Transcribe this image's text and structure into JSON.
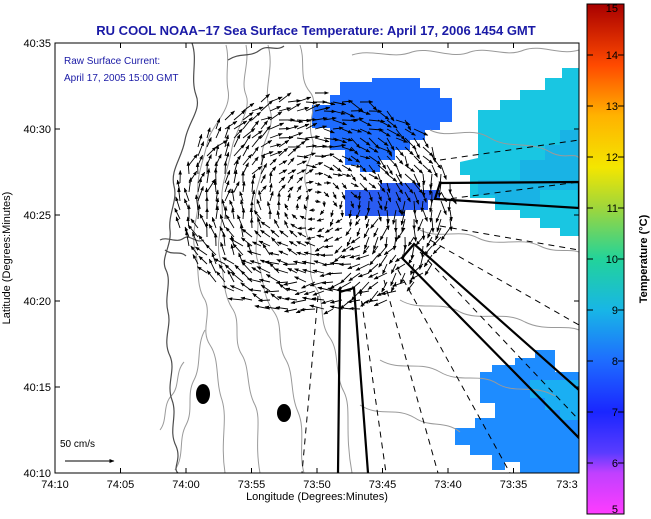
{
  "title": "RU COOL  NOAA−17  Sea Surface Temperature:  April 17, 2006 1454 GMT",
  "annotation": {
    "line1": "Raw Surface Current:",
    "line2": "April 17, 2005 15:00 GMT"
  },
  "scale": {
    "label": "50 cm/s"
  },
  "colors": {
    "title_text": "#1a1aa6",
    "land_coast": "#555555",
    "bathymetry": "#999999",
    "sst_cold": "#1e6cff",
    "sst_mid": "#18b6e6",
    "sst_warm": "#19d5d9"
  },
  "chart_data": {
    "type": "heatmap",
    "title": "RU COOL  NOAA−17  Sea Surface Temperature:  April 17, 2006 1454 GMT",
    "xlabel": "Longitude (Degrees:Minutes)",
    "ylabel": "Latitude (Degrees:Minutes)",
    "x_ticks": [
      "74:10",
      "74:05",
      "74:00",
      "73:55",
      "73:50",
      "73:45",
      "73:40",
      "73:35",
      "73:3"
    ],
    "y_ticks": [
      "40:10",
      "40:15",
      "40:20",
      "40:25",
      "40:30",
      "40:35"
    ],
    "xlim_minutes_west": [
      70,
      30
    ],
    "ylim_minutes_north": [
      10,
      35
    ],
    "grid": false,
    "colorbar": {
      "label": "Temperature (°C)",
      "range": [
        5,
        15
      ],
      "ticks": [
        "5",
        "6",
        "7",
        "8",
        "9",
        "10",
        "11",
        "12",
        "13",
        "14",
        "15"
      ]
    },
    "sst_patches": [
      {
        "region": "north-center cloud-free patch",
        "temp_c": 7.0
      },
      {
        "region": "east patch (upper right)",
        "temp_c": 8.7
      },
      {
        "region": "southeast patch (lower right)",
        "temp_c": 7.9
      }
    ],
    "current_field": {
      "note": "Raw Surface Current: April 17, 2005 15:00 GMT",
      "pattern": "clockwise eddy centered near 40:25N 73:53W",
      "reference_speed_cm_s": 50
    }
  }
}
